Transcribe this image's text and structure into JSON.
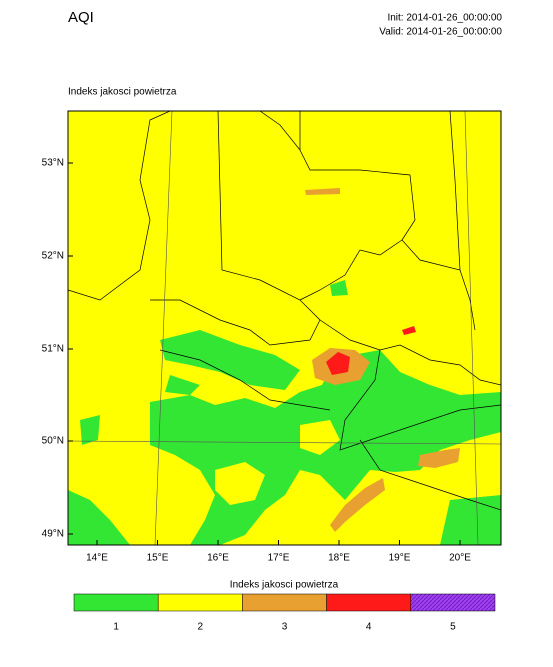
{
  "header": {
    "title": "AQI",
    "init": "Init: 2014-01-26_00:00:00",
    "valid": "Valid: 2014-01-26_00:00:00"
  },
  "map": {
    "subtitle": "Indeks jakosci powietrza",
    "lat_labels": [
      "53°N",
      "52°N",
      "51°N",
      "50°N",
      "49°N"
    ],
    "lon_labels": [
      "14°E",
      "15°E",
      "16°E",
      "17°E",
      "18°E",
      "19°E",
      "20°E"
    ]
  },
  "colorbar": {
    "title": "Indeks jakosci powietrza",
    "items": [
      {
        "label": "1",
        "color": "#33e633"
      },
      {
        "label": "2",
        "color": "#ffff00"
      },
      {
        "label": "3",
        "color": "#e8a030"
      },
      {
        "label": "4",
        "color": "#ff1a1a"
      },
      {
        "label": "5",
        "color": "#a040f0"
      }
    ]
  }
}
